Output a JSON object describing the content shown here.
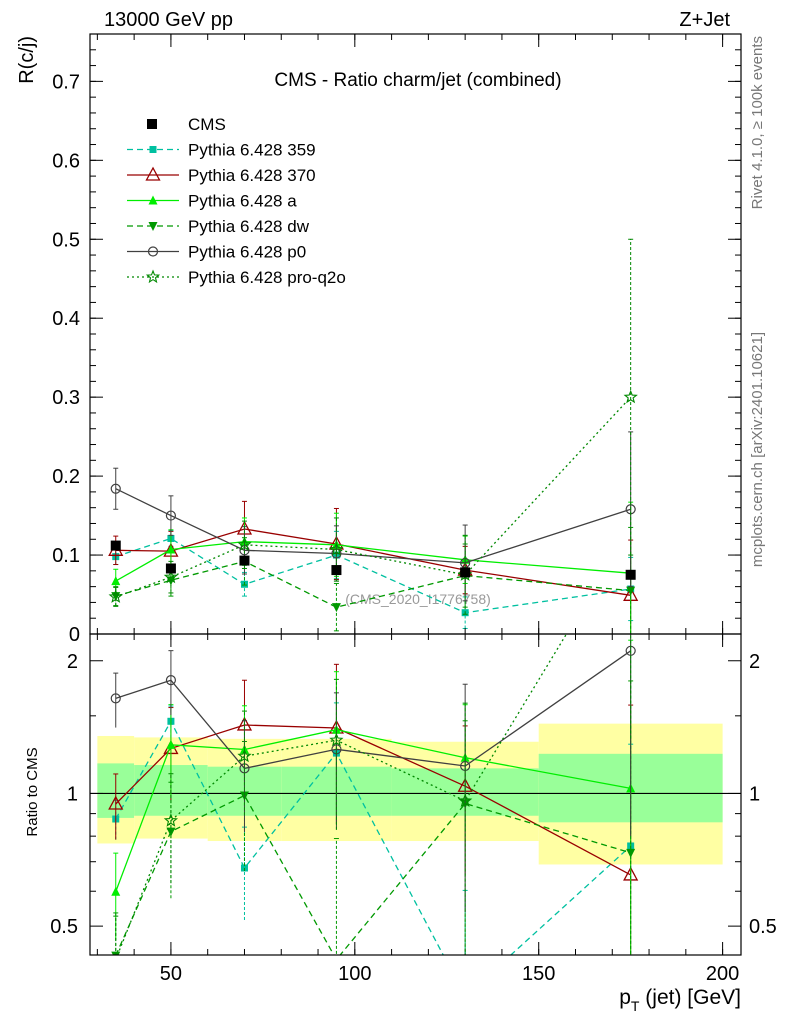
{
  "header": {
    "left": "13000 GeV pp",
    "right": "Z+Jet"
  },
  "side": {
    "rivet": "Rivet 4.1.0, ≥ 100k events",
    "mcplots": "mcplots.cern.ch [arXiv:2401.10621]"
  },
  "watermark": "(CMS_2020_I1776758)",
  "chart_data": {
    "type": "line",
    "title": "CMS - Ratio charm/jet (combined)",
    "xlabel": "p_T (jet) [GeV]",
    "ylabel": "R(c/j)",
    "ratio_ylabel": "Ratio to CMS",
    "xlim": [
      28,
      205
    ],
    "ylim": [
      0,
      0.76
    ],
    "ratio_ylim": [
      0.43,
      2.3
    ],
    "x_ticks": [
      50,
      100,
      150,
      200
    ],
    "y_ticks": [
      0,
      0.1,
      0.2,
      0.3,
      0.4,
      0.5,
      0.6,
      0.7
    ],
    "y_tick_labels": [
      "0",
      "0.1",
      "0.2",
      "0.3",
      "0.4",
      "0.5",
      "0.6",
      "0.7"
    ],
    "ratio_ticks": [
      0.5,
      1,
      2
    ],
    "ratio_tick_labels": [
      "0.5",
      "1",
      "2"
    ],
    "bins": [
      [
        30,
        40
      ],
      [
        40,
        60
      ],
      [
        60,
        80
      ],
      [
        80,
        110
      ],
      [
        110,
        150
      ],
      [
        150,
        200
      ]
    ],
    "x": [
      35,
      50,
      70,
      95,
      130,
      175
    ],
    "data": {
      "name": "CMS",
      "values": [
        0.112,
        0.083,
        0.093,
        0.081,
        0.078,
        0.075
      ],
      "band_inner": [
        [
          0.88,
          1.17
        ],
        [
          0.89,
          1.16
        ],
        [
          0.89,
          1.15
        ],
        [
          0.89,
          1.15
        ],
        [
          0.89,
          1.14
        ],
        [
          0.86,
          1.23
        ]
      ],
      "band_outer": [
        [
          0.77,
          1.35
        ],
        [
          0.79,
          1.34
        ],
        [
          0.78,
          1.33
        ],
        [
          0.78,
          1.33
        ],
        [
          0.78,
          1.31
        ],
        [
          0.69,
          1.44
        ]
      ]
    },
    "series": [
      {
        "name": "Pythia 6.428 359",
        "color": "#00c0a0",
        "dash": "6,4",
        "marker": "square-small",
        "values": [
          0.098,
          0.121,
          0.063,
          0.1,
          0.027,
          0.057
        ],
        "err": [
          0.01,
          0.01,
          0.015,
          0.03,
          0.02,
          0.04
        ]
      },
      {
        "name": "Pythia 6.428 370",
        "color": "#990000",
        "dash": "",
        "marker": "triangle-open",
        "values": [
          0.106,
          0.105,
          0.133,
          0.114,
          0.081,
          0.049
        ],
        "err": [
          0.018,
          0.025,
          0.035,
          0.045,
          0.03,
          0.07
        ]
      },
      {
        "name": "Pythia 6.428 a",
        "color": "#00ee00",
        "dash": "",
        "marker": "triangle-filled",
        "values": [
          0.067,
          0.107,
          0.117,
          0.113,
          0.094,
          0.077
        ],
        "err": [
          0.015,
          0.025,
          0.03,
          0.04,
          0.03,
          0.09
        ]
      },
      {
        "name": "Pythia 6.428 dw",
        "color": "#009900",
        "dash": "6,4",
        "marker": "triangle-down",
        "values": [
          0.048,
          0.068,
          0.092,
          0.034,
          0.074,
          0.055
        ],
        "err": [
          0.012,
          0.02,
          0.03,
          0.03,
          0.04,
          0.08
        ]
      },
      {
        "name": "Pythia 6.428 p0",
        "color": "#404040",
        "dash": "",
        "marker": "circle-open",
        "values": [
          0.184,
          0.15,
          0.106,
          0.102,
          0.09,
          0.158
        ],
        "err": [
          0.026,
          0.025,
          0.03,
          0.035,
          0.048,
          0.098
        ]
      },
      {
        "name": "Pythia 6.428 pro-q2o",
        "color": "#008800",
        "dash": "2,3",
        "marker": "star",
        "values": [
          0.047,
          0.072,
          0.113,
          0.107,
          0.075,
          0.3
        ],
        "err": [
          0.012,
          0.02,
          0.03,
          0.04,
          0.05,
          0.2
        ]
      }
    ]
  }
}
